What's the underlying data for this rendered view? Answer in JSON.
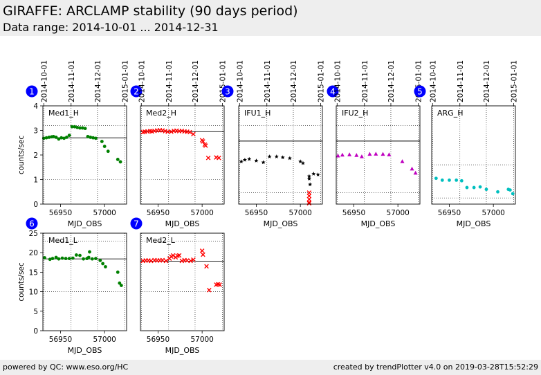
{
  "header": {
    "title": "GIRAFFE: ARCLAMP stability (90 days period)",
    "subtitle": "Data range: 2014-10-01 ... 2014-12-31"
  },
  "footer": {
    "left": "powered by QC: www.eso.org/HC",
    "right": "created by trendPlotter v4.0 on 2019-03-28T15:52:29"
  },
  "date_ticks": [
    "2014-10-01",
    "2014-11-01",
    "2014-12-01",
    "2015-01-01"
  ],
  "x_ticks": [
    "56950",
    "57000"
  ],
  "chart_data": [
    {
      "type": "scatter",
      "number": "1",
      "label": "Med1_H",
      "xlabel": "MJD_OBS",
      "ylabel": "counts/sec",
      "xlim": [
        56930,
        57025
      ],
      "ylim": [
        0,
        4
      ],
      "yticks": [
        "0",
        "1",
        "2",
        "3",
        "4"
      ],
      "ref_line": 2.7,
      "ref_dotted": [
        1.0,
        3.2
      ],
      "marker": "circle",
      "color": "#008000",
      "x": [
        56931,
        56934,
        56937,
        56940,
        56942,
        56945,
        56948,
        56951,
        56954,
        56957,
        56960,
        56963,
        56966,
        56969,
        56972,
        56975,
        56978,
        56981,
        56984,
        56987,
        56990,
        56997,
        57000,
        57004,
        57015,
        57018
      ],
      "y": [
        2.68,
        2.7,
        2.72,
        2.74,
        2.75,
        2.72,
        2.65,
        2.7,
        2.68,
        2.72,
        2.8,
        3.15,
        3.15,
        3.12,
        3.1,
        3.1,
        3.08,
        2.75,
        2.72,
        2.7,
        2.68,
        2.55,
        2.35,
        2.15,
        1.82,
        1.72
      ],
      "outliers": []
    },
    {
      "type": "scatter",
      "number": "2",
      "label": "Med2_H",
      "xlabel": "MJD_OBS",
      "ylabel": "",
      "xlim": [
        56930,
        57025
      ],
      "ylim": [
        0,
        4
      ],
      "yticks": [],
      "ref_line": 2.95,
      "ref_dotted": [
        1.0,
        3.2
      ],
      "marker": "x",
      "color": "#ff0000",
      "x": [
        56933,
        56935,
        56938,
        56941,
        56943,
        56946,
        56949,
        56952,
        56955,
        56958,
        56961,
        56965,
        56968,
        56971,
        56974,
        56977,
        56980,
        56983,
        56986,
        56990,
        57000,
        57001,
        57003,
        57004,
        57007,
        57016,
        57019
      ],
      "y": [
        2.93,
        2.95,
        2.96,
        2.97,
        2.96,
        2.98,
        3.0,
        3.01,
        3.0,
        2.97,
        2.95,
        2.95,
        2.98,
        2.99,
        2.97,
        2.98,
        2.96,
        2.95,
        2.93,
        2.85,
        2.6,
        2.55,
        2.42,
        2.38,
        1.88,
        1.9,
        1.88
      ],
      "outliers": []
    },
    {
      "type": "scatter",
      "number": "3",
      "label": "IFU1_H",
      "xlabel": "MJD_OBS",
      "ylabel": "",
      "xlim": [
        56930,
        57025
      ],
      "ylim": [
        0,
        0.6
      ],
      "yticks": [],
      "ref_line": 0.385,
      "ref_dotted": [
        0.07,
        0.48
      ],
      "marker": "star",
      "color": "#000000",
      "x": [
        56933,
        56937,
        56942,
        56950,
        56958,
        56965,
        56973,
        56980,
        56988,
        57000,
        57003,
        57010,
        57010,
        57011,
        57015,
        57020
      ],
      "y": [
        0.26,
        0.27,
        0.275,
        0.265,
        0.255,
        0.29,
        0.29,
        0.285,
        0.28,
        0.26,
        0.25,
        0.17,
        0.155,
        0.12,
        0.185,
        0.18
      ],
      "outliers": [
        {
          "x": 57010,
          "y": 0.07
        },
        {
          "x": 57010,
          "y": 0.05
        },
        {
          "x": 57010,
          "y": 0.03
        },
        {
          "x": 57010,
          "y": 0.01
        },
        {
          "x": 57010,
          "y": 0.005
        }
      ]
    },
    {
      "type": "scatter",
      "number": "4",
      "label": "IFU2_H",
      "xlabel": "MJD_OBS",
      "ylabel": "",
      "xlim": [
        56930,
        57025
      ],
      "ylim": [
        0,
        0.6
      ],
      "yticks": [],
      "ref_line": 0.385,
      "ref_dotted": [
        0.07,
        0.48
      ],
      "marker": "triangle",
      "color": "#bf00bf",
      "x": [
        56932,
        56937,
        56945,
        56953,
        56959,
        56968,
        56975,
        56983,
        56990,
        57005,
        57016,
        57020
      ],
      "y": [
        0.295,
        0.3,
        0.302,
        0.298,
        0.29,
        0.305,
        0.306,
        0.305,
        0.302,
        0.26,
        0.215,
        0.19
      ],
      "outliers": []
    },
    {
      "type": "scatter",
      "number": "5",
      "label": "ARG_H",
      "xlabel": "MJD_OBS",
      "ylabel": "",
      "xlim": [
        56930,
        57025
      ],
      "ylim": [
        0,
        0.8
      ],
      "yticks": [],
      "ref_line": 0.0,
      "ref_dotted": [
        0.05,
        0.32
      ],
      "marker": "circle",
      "color": "#00bfbf",
      "x": [
        56935,
        56942,
        56950,
        56958,
        56964,
        56970,
        56978,
        56985,
        56992,
        57005,
        57017,
        57019,
        57022
      ],
      "y": [
        0.21,
        0.195,
        0.195,
        0.195,
        0.19,
        0.135,
        0.135,
        0.14,
        0.12,
        0.1,
        0.12,
        0.115,
        0.085
      ],
      "outliers": []
    },
    {
      "type": "scatter",
      "number": "6",
      "label": "Med1_L",
      "xlabel": "MJD_OBS",
      "ylabel": "counts/sec",
      "xlim": [
        56930,
        57025
      ],
      "ylim": [
        0,
        25
      ],
      "yticks": [
        "0",
        "5",
        "10",
        "15",
        "20",
        "25"
      ],
      "ref_line": 18.4,
      "ref_dotted": [
        10.0,
        23.0
      ],
      "marker": "circle",
      "color": "#008000",
      "x": [
        56932,
        56938,
        56941,
        56945,
        56948,
        56952,
        56956,
        56960,
        56964,
        56968,
        56972,
        56976,
        56980,
        56982,
        56983,
        56986,
        56990,
        56995,
        56998,
        57001,
        57015,
        57017,
        57019
      ],
      "y": [
        18.7,
        18.3,
        18.5,
        18.8,
        18.4,
        18.6,
        18.5,
        18.5,
        18.6,
        19.4,
        19.3,
        18.4,
        18.5,
        18.8,
        20.2,
        18.4,
        18.5,
        18.0,
        17.2,
        16.4,
        15.0,
        12.2,
        11.6
      ],
      "outliers": []
    },
    {
      "type": "scatter",
      "number": "7",
      "label": "Med2_L",
      "xlabel": "MJD_OBS",
      "ylabel": "",
      "xlim": [
        56930,
        57025
      ],
      "ylim": [
        0,
        25
      ],
      "yticks": [],
      "ref_line": 17.8,
      "ref_dotted": [
        10.0,
        23.0
      ],
      "marker": "x",
      "color": "#ff0000",
      "x": [
        56933,
        56936,
        56939,
        56942,
        56946,
        56949,
        56952,
        56955,
        56959,
        56963,
        56965,
        56967,
        56970,
        56972,
        56974,
        56977,
        56980,
        56983,
        56987,
        56990,
        57000,
        57001,
        57005,
        57008,
        57016,
        57018,
        57020
      ],
      "y": [
        17.9,
        18.0,
        18.0,
        17.9,
        18.1,
        18.0,
        18.0,
        18.1,
        17.9,
        18.5,
        19.0,
        19.3,
        18.8,
        19.2,
        19.3,
        17.9,
        18.1,
        18.0,
        17.9,
        18.2,
        20.5,
        19.5,
        16.5,
        10.4,
        11.8,
        11.9,
        11.8
      ],
      "outliers": []
    }
  ]
}
